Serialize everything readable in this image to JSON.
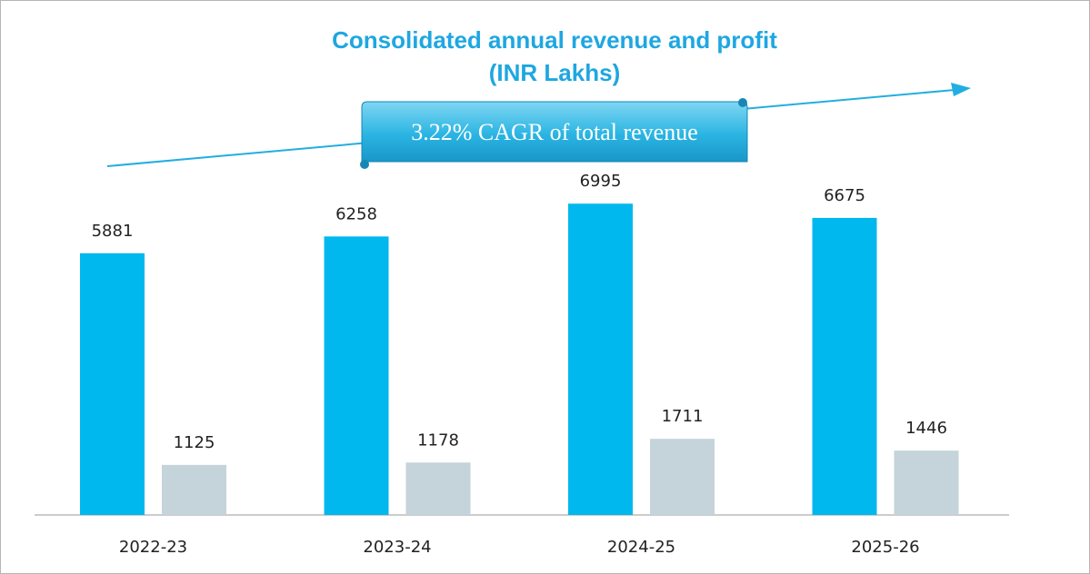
{
  "chart_data": {
    "type": "bar",
    "title": "Consolidated annual revenue and profit",
    "subtitle": "(INR Lakhs)",
    "annotation": "3.22% CAGR of total revenue",
    "categories": [
      "2022-23",
      "2023-24",
      "2024-25",
      "2025-26"
    ],
    "series": [
      {
        "color": "#00b8ee",
        "values": [
          5881,
          6258,
          6995,
          6675
        ]
      },
      {
        "color": "#c5d3da",
        "values": [
          1125,
          1178,
          1711,
          1446
        ]
      }
    ]
  }
}
